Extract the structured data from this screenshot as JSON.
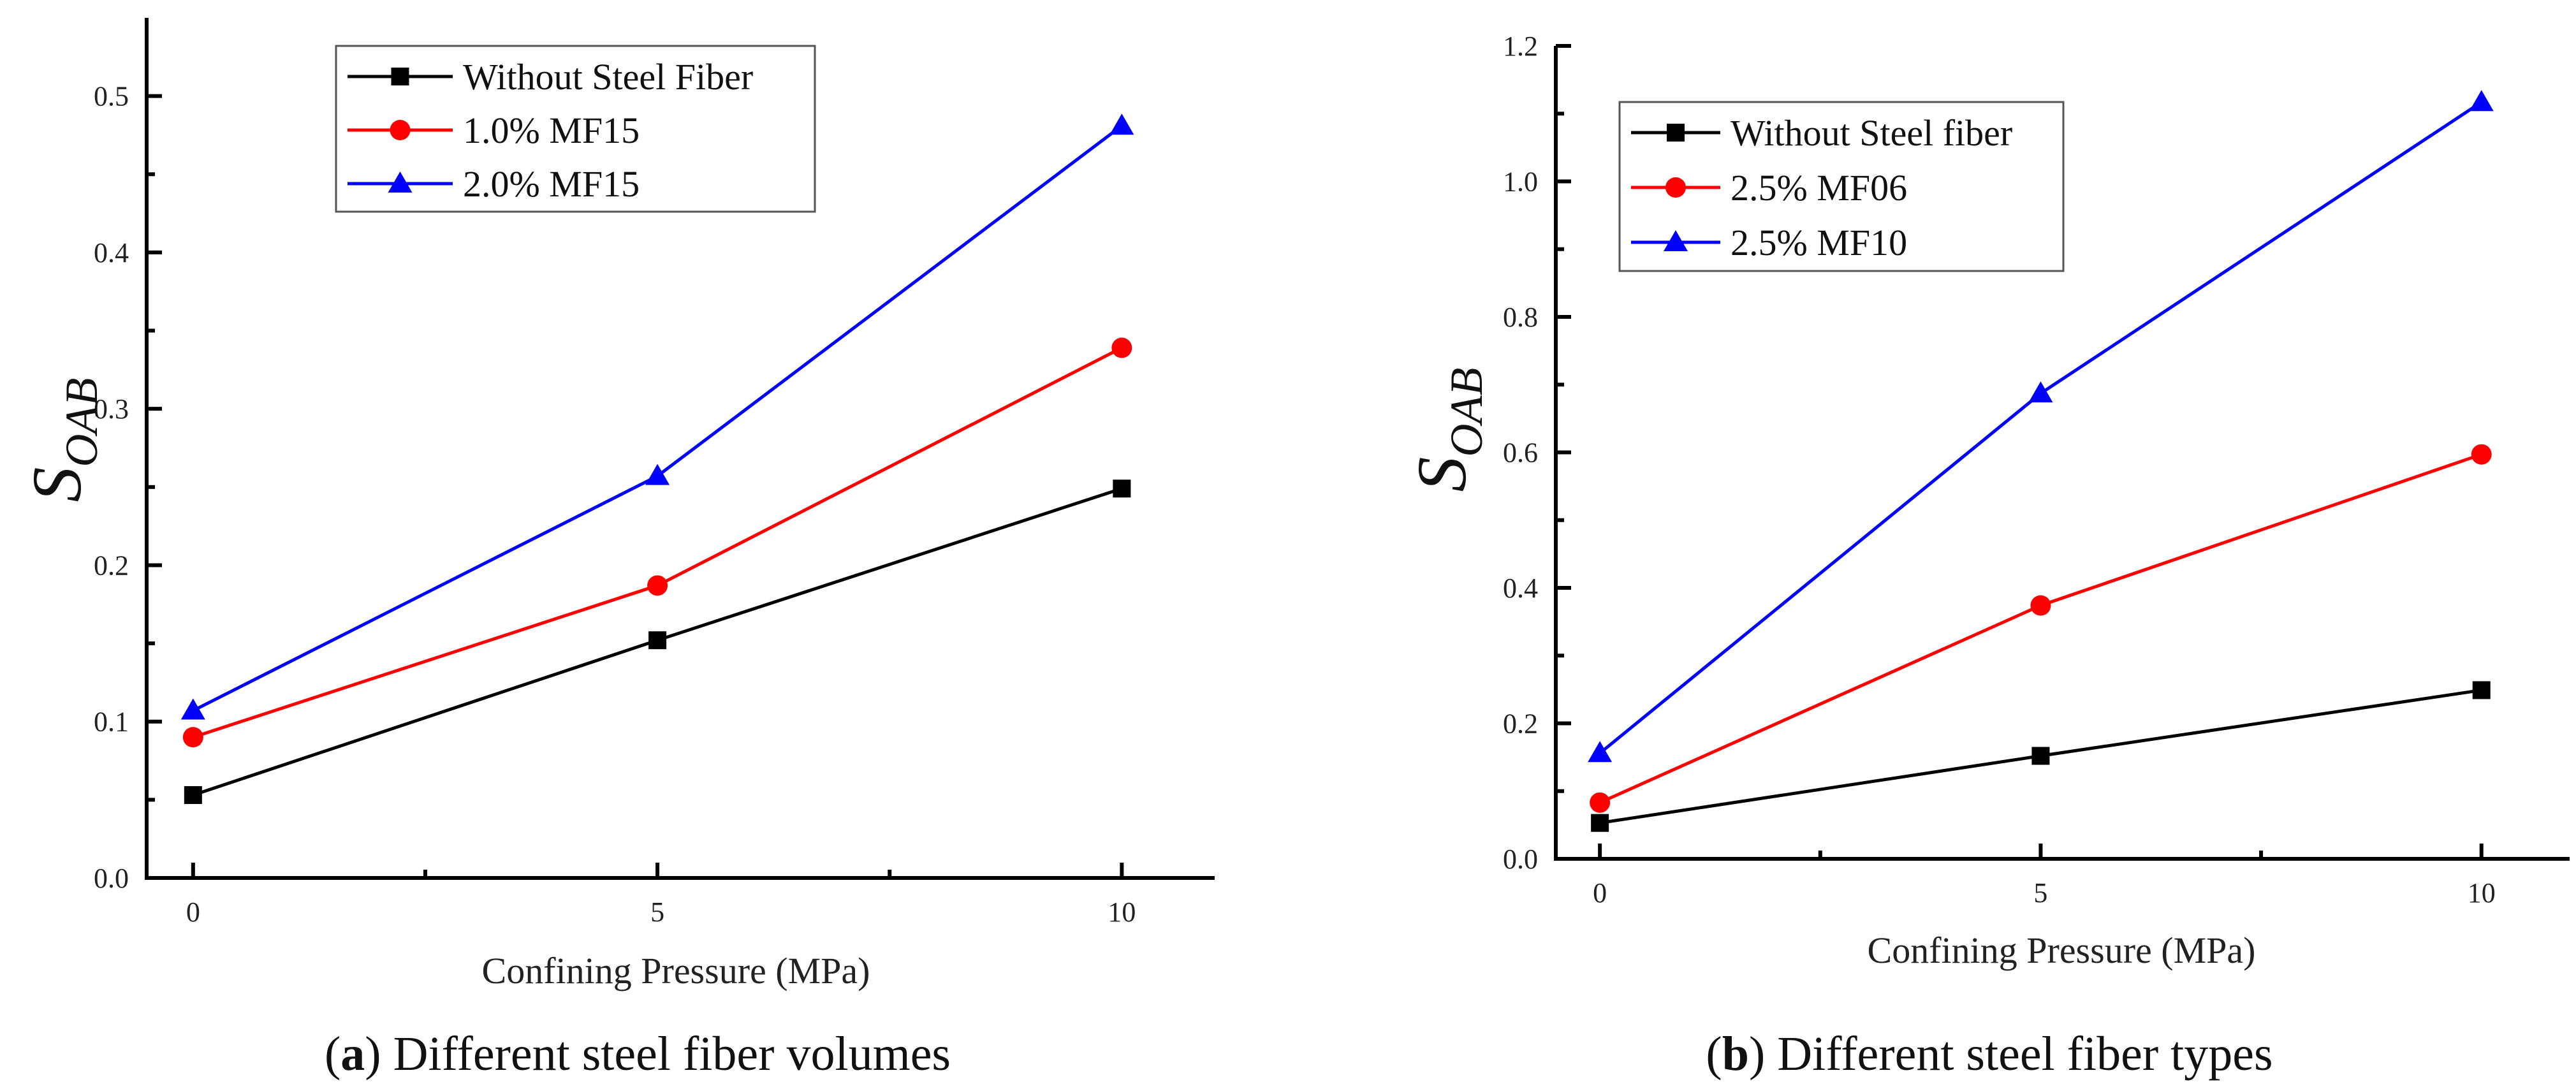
{
  "chart_data": [
    {
      "type": "line",
      "title": "",
      "xlabel": "Confining Pressure (MPa)",
      "ylabel_main": "S",
      "ylabel_sub": "OAB",
      "caption_letter": "a",
      "caption_text": " Different steel fiber volumes",
      "x": [
        0,
        5,
        10
      ],
      "xticks": [
        0,
        5,
        10
      ],
      "xtick_labels": [
        "0",
        "5",
        "10"
      ],
      "xlim": [
        -0.5,
        11
      ],
      "ylim": [
        0,
        0.55
      ],
      "yticks": [
        0.0,
        0.1,
        0.2,
        0.3,
        0.4,
        0.5
      ],
      "ytick_labels": [
        "0.0",
        "0.1",
        "0.2",
        "0.3",
        "0.4",
        "0.5"
      ],
      "grid": false,
      "legend_position": "top-left",
      "series": [
        {
          "name": "Without Steel Fiber",
          "values": [
            0.053,
            0.152,
            0.249
          ],
          "color": "#000000",
          "marker": "square"
        },
        {
          "name": "1.0% MF15",
          "values": [
            0.09,
            0.187,
            0.339
          ],
          "color": "#ff0000",
          "marker": "circle"
        },
        {
          "name": "2.0% MF15",
          "values": [
            0.107,
            0.257,
            0.481
          ],
          "color": "#0000ff",
          "marker": "triangle"
        }
      ]
    },
    {
      "type": "line",
      "title": "",
      "xlabel": "Confining Pressure (MPa)",
      "ylabel_main": "S",
      "ylabel_sub": "OAB",
      "caption_letter": "b",
      "caption_text": " Different steel fiber types",
      "x": [
        0,
        5,
        10
      ],
      "xticks": [
        0,
        5,
        10
      ],
      "xtick_labels": [
        "0",
        "5",
        "10"
      ],
      "xlim": [
        -0.5,
        11
      ],
      "ylim": [
        0,
        1.2
      ],
      "yticks": [
        0.0,
        0.2,
        0.4,
        0.6,
        0.8,
        1.0,
        1.2
      ],
      "ytick_labels": [
        "0.0",
        "0.2",
        "0.4",
        "0.6",
        "0.8",
        "1.0",
        "1.2"
      ],
      "grid": false,
      "legend_position": "top-left",
      "series": [
        {
          "name": "Without Steel fiber",
          "values": [
            0.053,
            0.152,
            0.249
          ],
          "color": "#000000",
          "marker": "square"
        },
        {
          "name": "2.5% MF06",
          "values": [
            0.083,
            0.374,
            0.597
          ],
          "color": "#ff0000",
          "marker": "circle"
        },
        {
          "name": "2.5% MF10",
          "values": [
            0.156,
            0.687,
            1.117
          ],
          "color": "#0000ff",
          "marker": "triangle"
        }
      ]
    }
  ]
}
